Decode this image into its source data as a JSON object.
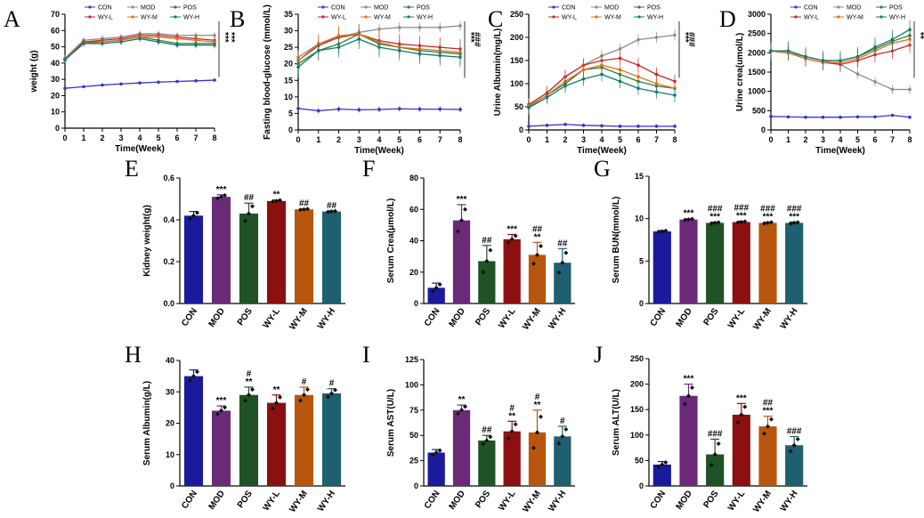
{
  "groups": [
    "CON",
    "MOD",
    "POS",
    "WY-L",
    "WY-M",
    "WY-H"
  ],
  "colors": {
    "bar": [
      "#1a1a9c",
      "#6a2a78",
      "#1f5225",
      "#8c1010",
      "#b8560f",
      "#1e5f70"
    ],
    "line": [
      "#3636c9",
      "#8a8a8a",
      "#2e7d32",
      "#c62828",
      "#e0701c",
      "#137a72"
    ]
  },
  "chart_data": [
    {
      "id": "A",
      "panel_label": "A",
      "type": "line",
      "xlabel": "Time(Week)",
      "ylabel": "weight (g)",
      "x": [
        0,
        1,
        2,
        3,
        4,
        5,
        6,
        7,
        8
      ],
      "ylim": [
        0,
        70
      ],
      "yticks": [
        "0",
        "10",
        "20",
        "30",
        "40",
        "50",
        "60",
        "70"
      ],
      "xticks": [
        "0",
        "1",
        "2",
        "3",
        "4",
        "5",
        "6",
        "7",
        "8"
      ],
      "series": [
        {
          "name": "CON",
          "values": [
            24.5,
            25.5,
            26.5,
            27.2,
            27.8,
            28.3,
            28.7,
            29.1,
            29.5
          ],
          "err": 0.5
        },
        {
          "name": "MOD",
          "values": [
            43,
            54,
            55,
            56,
            58,
            58,
            57,
            57,
            57
          ],
          "err": 2
        },
        {
          "name": "POS",
          "values": [
            42,
            53,
            53,
            54,
            56,
            54,
            52,
            52,
            52
          ],
          "err": 2
        },
        {
          "name": "WY-L",
          "values": [
            42,
            53,
            54,
            55,
            57,
            57,
            56,
            55,
            54
          ],
          "err": 2
        },
        {
          "name": "WY-M",
          "values": [
            42,
            52,
            53,
            54,
            56,
            56,
            55,
            54,
            53
          ],
          "err": 2
        },
        {
          "name": "WY-H",
          "values": [
            42,
            52,
            52,
            53,
            55,
            53,
            51,
            51,
            51
          ],
          "err": 2
        }
      ],
      "annotations": [
        "***",
        "***"
      ]
    },
    {
      "id": "B",
      "panel_label": "B",
      "type": "line",
      "xlabel": "Time(Week)",
      "ylabel": "Fasting blood-glucose (mmol/L)",
      "x": [
        0,
        1,
        2,
        3,
        4,
        5,
        6,
        7,
        8
      ],
      "ylim": [
        0,
        35
      ],
      "yticks": [
        "0",
        "5",
        "10",
        "15",
        "20",
        "25",
        "30",
        "35"
      ],
      "xticks": [
        "0",
        "1",
        "2",
        "3",
        "4",
        "5",
        "6",
        "7",
        "8"
      ],
      "series": [
        {
          "name": "CON",
          "values": [
            6.5,
            5.8,
            6.3,
            6.1,
            6.2,
            6.4,
            6.3,
            6.3,
            6.2
          ],
          "err": 0.8
        },
        {
          "name": "MOD",
          "values": [
            22,
            26,
            28,
            29.5,
            30.5,
            31,
            31,
            31,
            31.5
          ],
          "err": 1.5
        },
        {
          "name": "POS",
          "values": [
            20,
            24,
            26,
            29,
            26,
            25,
            24,
            23.5,
            23
          ],
          "err": 3
        },
        {
          "name": "WY-L",
          "values": [
            21,
            25.5,
            28,
            29,
            27,
            26,
            25.5,
            25,
            24.5
          ],
          "err": 3
        },
        {
          "name": "WY-M",
          "values": [
            21,
            26,
            28.5,
            29,
            26.5,
            25,
            24.5,
            24,
            23.5
          ],
          "err": 3
        },
        {
          "name": "WY-H",
          "values": [
            19,
            24,
            25,
            27.5,
            25,
            24,
            23,
            22.5,
            22
          ],
          "err": 3
        }
      ],
      "annotations": [
        "***",
        "###"
      ]
    },
    {
      "id": "C",
      "panel_label": "C",
      "type": "line",
      "xlabel": "Time(Week)",
      "ylabel": "Urine Albumin(mg/L)",
      "x": [
        0,
        1,
        2,
        3,
        4,
        5,
        6,
        7,
        8
      ],
      "ylim": [
        0,
        250
      ],
      "yticks": [
        "0",
        "50",
        "100",
        "150",
        "200",
        "250"
      ],
      "xticks": [
        "0",
        "1",
        "2",
        "3",
        "4",
        "5",
        "6",
        "7",
        "8"
      ],
      "series": [
        {
          "name": "CON",
          "values": [
            8,
            10,
            12,
            10,
            9,
            8,
            8,
            8,
            8
          ],
          "err": 4
        },
        {
          "name": "MOD",
          "values": [
            55,
            80,
            115,
            140,
            160,
            175,
            195,
            200,
            205
          ],
          "err": 12
        },
        {
          "name": "POS",
          "values": [
            50,
            75,
            100,
            130,
            135,
            120,
            105,
            95,
            90
          ],
          "err": 15
        },
        {
          "name": "WY-L",
          "values": [
            55,
            80,
            115,
            140,
            150,
            155,
            140,
            120,
            105
          ],
          "err": 15
        },
        {
          "name": "WY-M",
          "values": [
            52,
            75,
            105,
            130,
            140,
            130,
            115,
            100,
            90
          ],
          "err": 15
        },
        {
          "name": "WY-H",
          "values": [
            48,
            70,
            95,
            110,
            120,
            105,
            90,
            82,
            75
          ],
          "err": 15
        }
      ],
      "annotations": [
        "***",
        "###"
      ]
    },
    {
      "id": "D",
      "panel_label": "D",
      "type": "line",
      "xlabel": "Time(Week)",
      "ylabel": "Urine crea(umol/L)",
      "x": [
        0,
        1,
        2,
        3,
        4,
        5,
        6,
        7,
        8
      ],
      "ylim": [
        0,
        3000
      ],
      "yticks": [
        "0",
        "500",
        "1000",
        "1500",
        "2000",
        "2500",
        "3000"
      ],
      "xticks": [
        "0",
        "1",
        "2",
        "3",
        "4",
        "5",
        "6",
        "7",
        "8"
      ],
      "series": [
        {
          "name": "CON",
          "values": [
            350,
            340,
            330,
            330,
            330,
            340,
            340,
            380,
            330
          ],
          "err": 30
        },
        {
          "name": "MOD",
          "values": [
            2050,
            2000,
            1900,
            1800,
            1700,
            1450,
            1250,
            1050,
            1050
          ],
          "err": 120
        },
        {
          "name": "POS",
          "values": [
            2050,
            2050,
            1900,
            1800,
            1800,
            1900,
            2100,
            2300,
            2450
          ],
          "err": 200
        },
        {
          "name": "WY-L",
          "values": [
            2050,
            2000,
            1850,
            1750,
            1700,
            1800,
            1950,
            2050,
            2200
          ],
          "err": 200
        },
        {
          "name": "WY-M",
          "values": [
            2050,
            2000,
            1850,
            1750,
            1750,
            1850,
            2050,
            2250,
            2350
          ],
          "err": 200
        },
        {
          "name": "WY-H",
          "values": [
            2050,
            2050,
            1900,
            1800,
            1800,
            1900,
            2150,
            2350,
            2600
          ],
          "err": 250
        }
      ],
      "annotations": [
        "**",
        "###"
      ]
    },
    {
      "id": "E",
      "panel_label": "E",
      "type": "bar",
      "ylabel": "Kidney weight(g)",
      "ylim": [
        0,
        0.6
      ],
      "yticks": [
        "0.0",
        "0.2",
        "0.4",
        "0.6"
      ],
      "categories": [
        "CON",
        "MOD",
        "POS",
        "WY-L",
        "WY-M",
        "WY-H"
      ],
      "values": [
        0.42,
        0.51,
        0.43,
        0.49,
        0.45,
        0.44
      ],
      "errors": [
        0.02,
        0.01,
        0.05,
        0.005,
        0.003,
        0.003
      ],
      "sig_top": [
        "",
        "***",
        "##",
        "**",
        "##",
        "##"
      ],
      "sig_bottom": [
        "",
        "",
        "",
        "",
        "",
        ""
      ]
    },
    {
      "id": "F",
      "panel_label": "F",
      "type": "bar",
      "ylabel": "Serum Crea(μmol/L)",
      "ylim": [
        0,
        80
      ],
      "yticks": [
        "0",
        "20",
        "40",
        "60",
        "80"
      ],
      "categories": [
        "CON",
        "MOD",
        "POS",
        "WY-L",
        "WY-M",
        "WY-H"
      ],
      "values": [
        10,
        53,
        27,
        41,
        31,
        26
      ],
      "errors": [
        3,
        10,
        10,
        3,
        8,
        9
      ],
      "sig_top": [
        "",
        "***",
        "##",
        "***",
        "##",
        "##"
      ],
      "sig_bottom": [
        "",
        "",
        "",
        "",
        "**",
        ""
      ]
    },
    {
      "id": "G",
      "panel_label": "G",
      "type": "bar",
      "ylabel": "Serum BUN(mmol/L)",
      "ylim": [
        0,
        15
      ],
      "yticks": [
        "0",
        "5",
        "10",
        "15"
      ],
      "categories": [
        "CON",
        "MOD",
        "POS",
        "WY-L",
        "WY-M",
        "WY-H"
      ],
      "values": [
        8.5,
        9.9,
        9.5,
        9.6,
        9.5,
        9.5
      ],
      "errors": [
        0.1,
        0.1,
        0.1,
        0.1,
        0.1,
        0.1
      ],
      "sig_top": [
        "",
        "***",
        "###",
        "###",
        "###",
        "###"
      ],
      "sig_bottom": [
        "",
        "",
        "***",
        "***",
        "***",
        "***"
      ]
    },
    {
      "id": "H",
      "panel_label": "H",
      "type": "bar",
      "ylabel": "Serum Albumin(g/L)",
      "ylim": [
        0,
        40
      ],
      "yticks": [
        "0",
        "10",
        "20",
        "30",
        "40"
      ],
      "categories": [
        "CON",
        "MOD",
        "POS",
        "WY-L",
        "WY-M",
        "WY-H"
      ],
      "values": [
        35,
        24,
        29,
        26.5,
        29,
        29.5
      ],
      "errors": [
        2,
        1.5,
        2.5,
        2.5,
        2.5,
        1.5
      ],
      "sig_top": [
        "",
        "***",
        "#",
        "**",
        "#",
        "#"
      ],
      "sig_bottom": [
        "",
        "",
        "**",
        "",
        "",
        ""
      ]
    },
    {
      "id": "I",
      "panel_label": "I",
      "type": "bar",
      "ylabel": "Serum AST(U/L)",
      "ylim": [
        0,
        125
      ],
      "yticks": [
        "0",
        "25",
        "50",
        "75",
        "100",
        "125"
      ],
      "categories": [
        "CON",
        "MOD",
        "POS",
        "WY-L",
        "WY-M",
        "WY-H"
      ],
      "values": [
        33,
        75,
        45,
        54,
        53,
        49
      ],
      "errors": [
        3,
        5,
        5,
        10,
        22,
        10
      ],
      "sig_top": [
        "",
        "**",
        "##",
        "#",
        "#",
        "#"
      ],
      "sig_bottom": [
        "",
        "",
        "",
        "**",
        "**",
        ""
      ]
    },
    {
      "id": "J",
      "panel_label": "J",
      "type": "bar",
      "ylabel": "Serum ALT(U/L)",
      "ylim": [
        0,
        250
      ],
      "yticks": [
        "0",
        "50",
        "100",
        "150",
        "200",
        "250"
      ],
      "categories": [
        "CON",
        "MOD",
        "POS",
        "WY-L",
        "WY-M",
        "WY-H"
      ],
      "values": [
        42,
        177,
        62,
        140,
        117,
        80
      ],
      "errors": [
        6,
        23,
        30,
        22,
        20,
        17
      ],
      "sig_top": [
        "",
        "***",
        "###",
        "***",
        "##",
        "###"
      ],
      "sig_bottom": [
        "",
        "",
        "",
        "",
        "***",
        ""
      ]
    }
  ]
}
